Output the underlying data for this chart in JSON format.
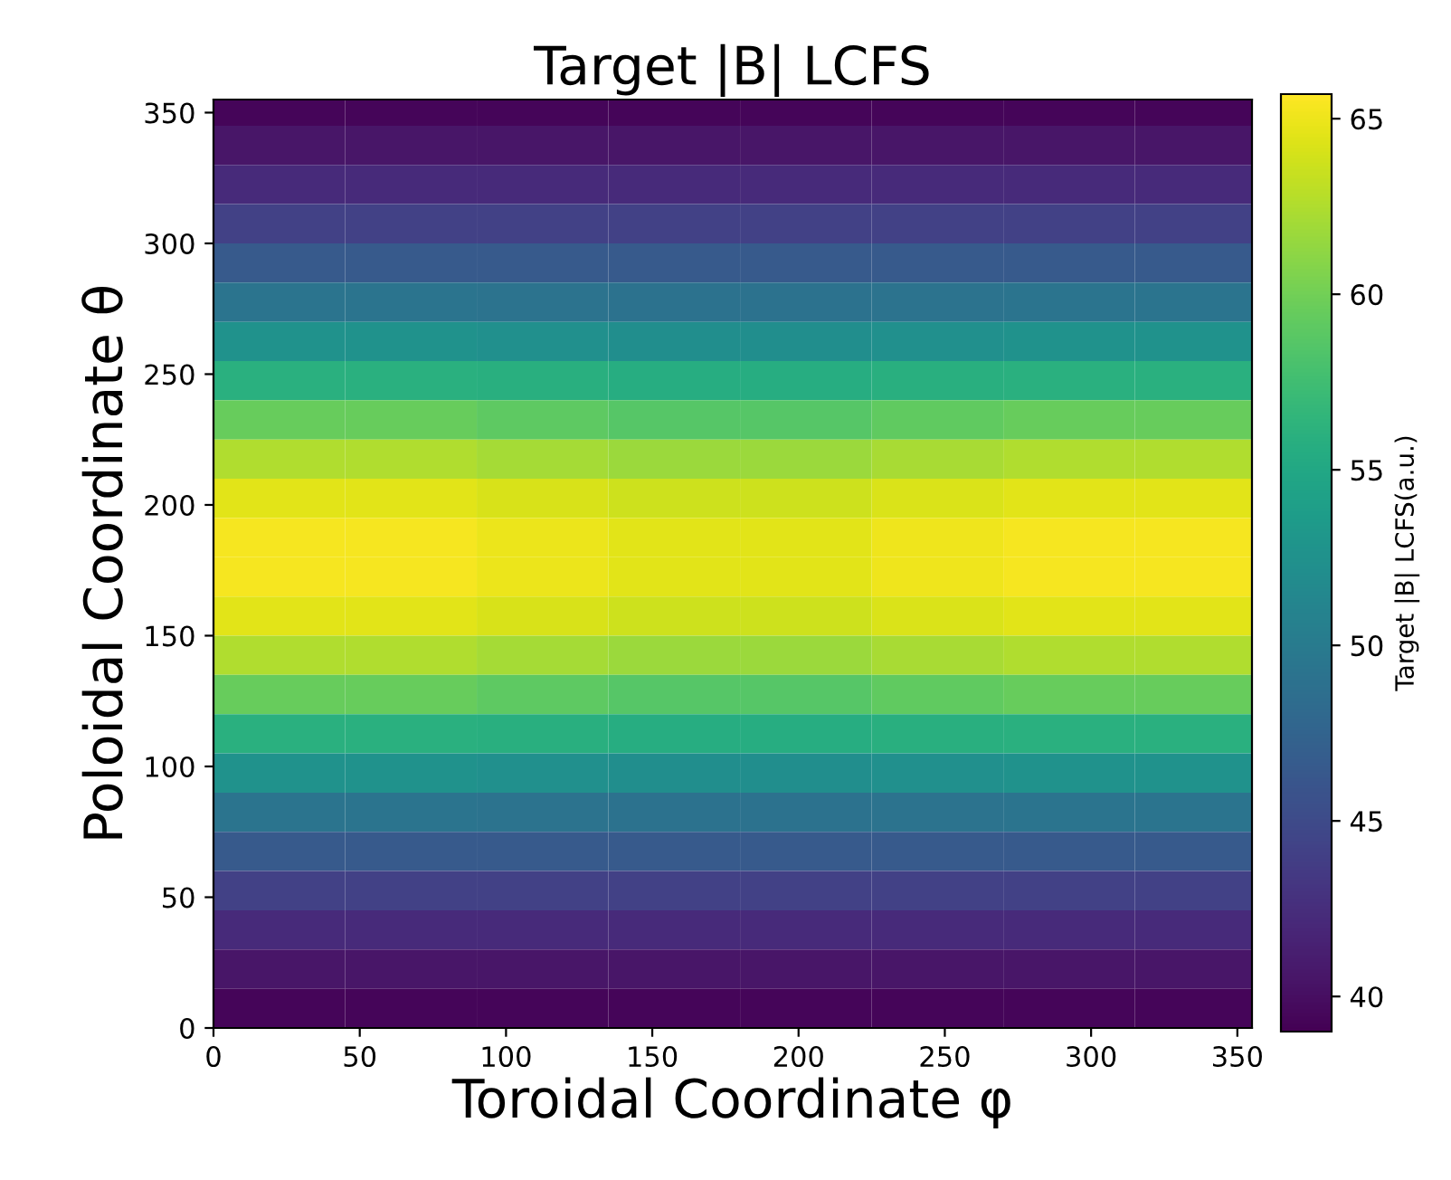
{
  "chart_data": {
    "type": "heatmap",
    "title": "Target |B| LCFS",
    "xlabel": "Toroidal Coordinate φ",
    "ylabel": "Poloidal Coordinate θ",
    "clabel": "Target |B| LCFS(a.u.)",
    "x": [
      22.5,
      67.5,
      112.5,
      157.5,
      202.5,
      247.5,
      292.5,
      337.5
    ],
    "y": [
      352.5,
      337.5,
      322.5,
      307.5,
      292.5,
      277.5,
      262.5,
      247.5,
      232.5,
      217.5,
      202.5,
      187.5,
      172.5,
      157.5,
      142.5,
      127.5,
      112.5,
      97.5,
      82.5,
      67.5,
      52.5,
      37.5,
      22.5,
      7.5
    ],
    "cells": [
      [
        39.4,
        39.4,
        39.4,
        39.4,
        39.4,
        39.4,
        39.4,
        39.4
      ],
      [
        40.5,
        40.5,
        40.5,
        40.5,
        40.5,
        40.5,
        40.5,
        40.5
      ],
      [
        42.2,
        42.2,
        42.2,
        42.2,
        42.2,
        42.2,
        42.2,
        42.2
      ],
      [
        44.2,
        44.2,
        44.2,
        44.2,
        44.2,
        44.2,
        44.2,
        44.2
      ],
      [
        46.5,
        46.5,
        46.5,
        46.5,
        46.5,
        46.5,
        46.5,
        46.5
      ],
      [
        49.3,
        49.3,
        49.2,
        49.1,
        49.1,
        49.2,
        49.3,
        49.3
      ],
      [
        52.5,
        52.5,
        52.3,
        52.1,
        52.1,
        52.3,
        52.5,
        52.5
      ],
      [
        56.0,
        56.0,
        55.8,
        55.6,
        55.6,
        55.8,
        56.0,
        56.0
      ],
      [
        59.5,
        59.5,
        59.1,
        58.7,
        58.7,
        59.2,
        59.5,
        59.5
      ],
      [
        62.5,
        62.5,
        62.1,
        61.7,
        61.7,
        62.2,
        62.5,
        62.5
      ],
      [
        64.5,
        64.5,
        64.1,
        63.7,
        63.7,
        64.2,
        64.5,
        64.5
      ],
      [
        65.3,
        65.3,
        64.9,
        64.5,
        64.5,
        65.0,
        65.3,
        65.3
      ],
      [
        65.3,
        65.3,
        64.9,
        64.5,
        64.5,
        65.0,
        65.3,
        65.3
      ],
      [
        64.5,
        64.5,
        64.1,
        63.7,
        63.7,
        64.2,
        64.5,
        64.5
      ],
      [
        62.5,
        62.5,
        62.1,
        61.7,
        61.7,
        62.2,
        62.5,
        62.5
      ],
      [
        59.5,
        59.5,
        59.1,
        58.7,
        58.7,
        59.2,
        59.5,
        59.5
      ],
      [
        56.0,
        56.0,
        55.8,
        55.6,
        55.6,
        55.8,
        56.0,
        56.0
      ],
      [
        52.5,
        52.5,
        52.3,
        52.1,
        52.1,
        52.3,
        52.5,
        52.5
      ],
      [
        49.3,
        49.3,
        49.2,
        49.1,
        49.1,
        49.2,
        49.3,
        49.3
      ],
      [
        46.5,
        46.5,
        46.5,
        46.5,
        46.5,
        46.5,
        46.5,
        46.5
      ],
      [
        44.2,
        44.2,
        44.2,
        44.2,
        44.2,
        44.2,
        44.2,
        44.2
      ],
      [
        42.2,
        42.2,
        42.2,
        42.2,
        42.2,
        42.2,
        42.2,
        42.2
      ],
      [
        40.5,
        40.5,
        40.5,
        40.5,
        40.5,
        40.5,
        40.5,
        40.5
      ],
      [
        39.4,
        39.4,
        39.4,
        39.4,
        39.4,
        39.4,
        39.4,
        39.4
      ]
    ],
    "xlim": [
      0,
      355
    ],
    "ylim": [
      0,
      355
    ],
    "xticks": [
      0,
      50,
      100,
      150,
      200,
      250,
      300,
      350
    ],
    "yticks": [
      0,
      50,
      100,
      150,
      200,
      250,
      300,
      350
    ],
    "clim": [
      39,
      65.7
    ],
    "cticks": [
      40,
      45,
      50,
      55,
      60,
      65
    ]
  }
}
